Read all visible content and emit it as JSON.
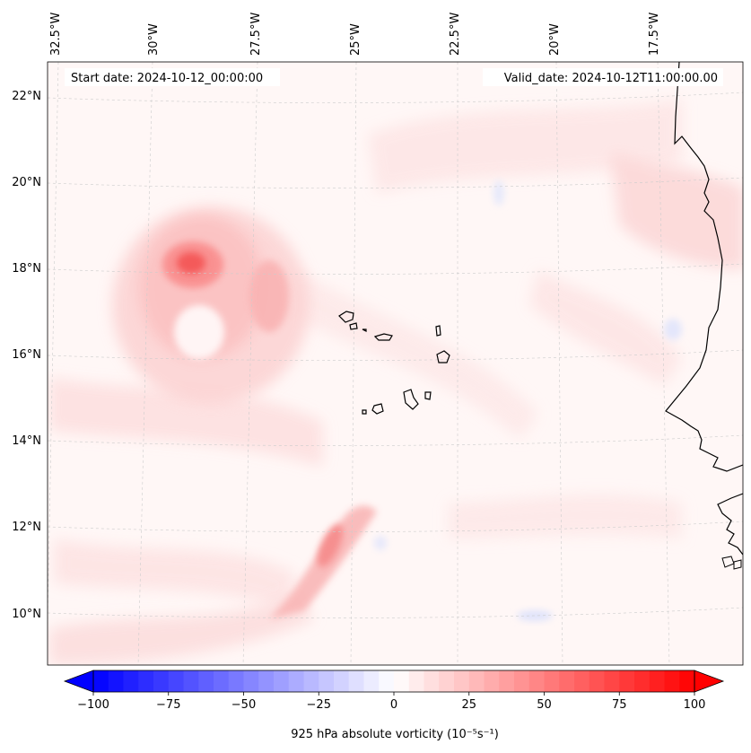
{
  "map": {
    "start_date_label": "Start date: 2024-10-12_00:00:00",
    "valid_date_label": "Valid_date: 2024-10-12T11:00:00.00",
    "lon_labels": [
      "32.5°W",
      "30°W",
      "27.5°W",
      "25°W",
      "22.5°W",
      "20°W",
      "17.5°W"
    ],
    "lat_labels": [
      "22°N",
      "20°N",
      "18°N",
      "16°N",
      "14°N",
      "12°N",
      "10°N"
    ],
    "lon_range": [
      -32.5,
      -15.0
    ],
    "lat_range": [
      8.9,
      22.8
    ]
  },
  "colorbar": {
    "label": "925 hPa absolute vorticity (10⁻⁵s⁻¹)",
    "ticks": [
      "−100",
      "−75",
      "−50",
      "−25",
      "0",
      "25",
      "50",
      "75",
      "100"
    ],
    "tick_values": [
      -100,
      -75,
      -50,
      -25,
      0,
      25,
      50,
      75,
      100
    ],
    "min": -100,
    "max": 100,
    "step": 5,
    "cmap": "bwr"
  },
  "colors": {
    "negative_max": "#0000ff",
    "positive_max": "#ff0000",
    "neutral": "#ffffff",
    "coastline": "#000000",
    "gridline": "#cccccc"
  }
}
